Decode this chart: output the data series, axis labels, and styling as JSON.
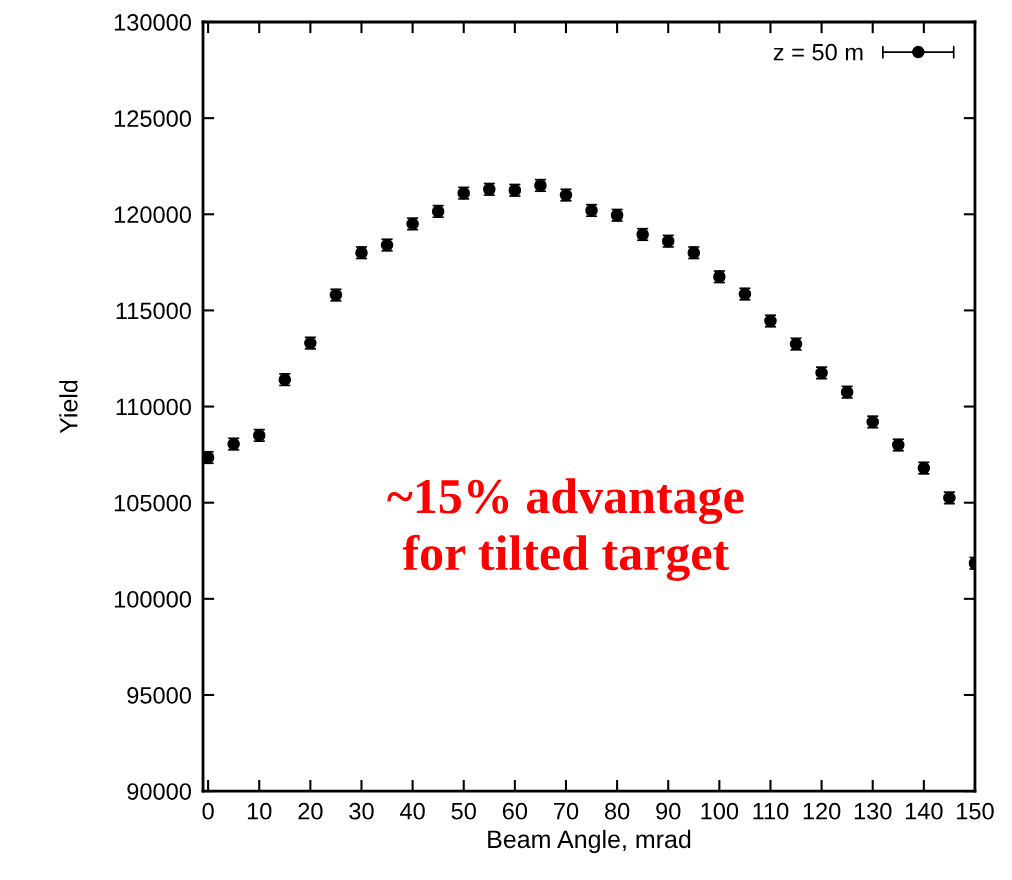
{
  "chart_data": {
    "type": "scatter",
    "xlabel": "Beam Angle, mrad",
    "ylabel": "Yield",
    "x": [
      0,
      5,
      10,
      15,
      20,
      25,
      30,
      35,
      40,
      45,
      50,
      55,
      60,
      65,
      70,
      75,
      80,
      85,
      90,
      95,
      100,
      105,
      110,
      115,
      120,
      125,
      130,
      135,
      140,
      145,
      150
    ],
    "series": [
      {
        "name": "z = 50 m",
        "color": "#000000",
        "marker": "circle",
        "values": [
          107350,
          108050,
          108500,
          111400,
          113300,
          115800,
          118000,
          118400,
          119500,
          120150,
          121100,
          121300,
          121250,
          121500,
          121000,
          120200,
          119950,
          118950,
          118600,
          118000,
          116750,
          115850,
          114450,
          113250,
          111750,
          110750,
          109200,
          108000,
          106800,
          105250,
          101850
        ],
        "errors": [
          300,
          300,
          300,
          300,
          300,
          300,
          300,
          300,
          300,
          300,
          300,
          300,
          300,
          300,
          300,
          300,
          300,
          300,
          300,
          300,
          300,
          300,
          300,
          300,
          300,
          300,
          300,
          300,
          300,
          300,
          300
        ]
      }
    ],
    "xlim": [
      -1,
      150
    ],
    "ylim": [
      90000,
      130000
    ],
    "xticks": [
      0,
      10,
      20,
      30,
      40,
      50,
      60,
      70,
      80,
      90,
      100,
      110,
      120,
      130,
      140,
      150
    ],
    "yticks": [
      90000,
      95000,
      100000,
      105000,
      110000,
      115000,
      120000,
      125000,
      130000
    ],
    "grid": false,
    "legend": "top right",
    "annotations": [
      "~15% advantage\nfor tilted target"
    ]
  }
}
